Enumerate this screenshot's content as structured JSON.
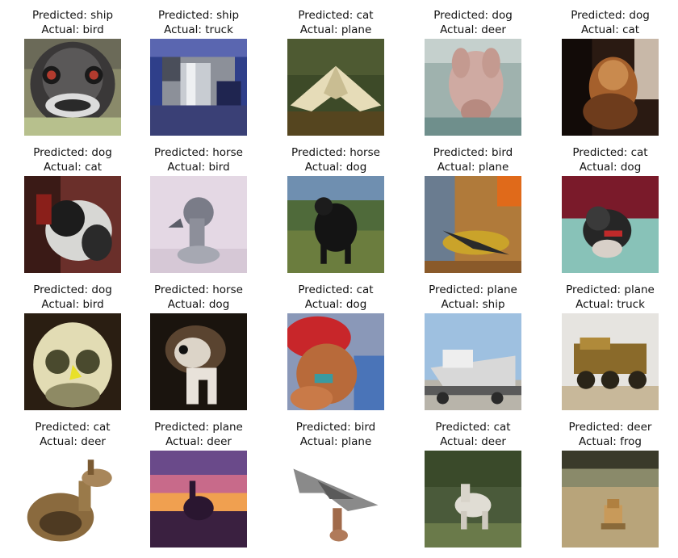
{
  "figure": {
    "tiles": [
      {
        "predicted": "Predicted: ship",
        "actual": "Actual: bird",
        "subject": "ostrich head close-up"
      },
      {
        "predicted": "Predicted: ship",
        "actual": "Actual: truck",
        "subject": "chrome truck grille"
      },
      {
        "predicted": "Predicted: cat",
        "actual": "Actual: plane",
        "subject": "stealth plane over ground"
      },
      {
        "predicted": "Predicted: dog",
        "actual": "Actual: deer",
        "subject": "pale deer head"
      },
      {
        "predicted": "Predicted: dog",
        "actual": "Actual: cat",
        "subject": "cat in dim light"
      },
      {
        "predicted": "Predicted: dog",
        "actual": "Actual: cat",
        "subject": "black and white cat"
      },
      {
        "predicted": "Predicted: horse",
        "actual": "Actual: bird",
        "subject": "grey bird on pale background"
      },
      {
        "predicted": "Predicted: horse",
        "actual": "Actual: dog",
        "subject": "black dog on grass"
      },
      {
        "predicted": "Predicted: bird",
        "actual": "Actual: plane",
        "subject": "plane against orange sky"
      },
      {
        "predicted": "Predicted: cat",
        "actual": "Actual: dog",
        "subject": "small dog on teal blanket"
      },
      {
        "predicted": "Predicted: dog",
        "actual": "Actual: bird",
        "subject": "owl face"
      },
      {
        "predicted": "Predicted: horse",
        "actual": "Actual: dog",
        "subject": "dog close-up"
      },
      {
        "predicted": "Predicted: cat",
        "actual": "Actual: dog",
        "subject": "dog with red cap"
      },
      {
        "predicted": "Predicted: plane",
        "actual": "Actual: ship",
        "subject": "ship on trailer"
      },
      {
        "predicted": "Predicted: plane",
        "actual": "Actual: truck",
        "subject": "yellow dump truck"
      },
      {
        "predicted": "Predicted: cat",
        "actual": "Actual: deer",
        "subject": "deer lying down"
      },
      {
        "predicted": "Predicted: plane",
        "actual": "Actual: deer",
        "subject": "deer silhouette at sunset"
      },
      {
        "predicted": "Predicted: bird",
        "actual": "Actual: plane",
        "subject": "stealth plane model"
      },
      {
        "predicted": "Predicted: cat",
        "actual": "Actual: deer",
        "subject": "white deer in forest"
      },
      {
        "predicted": "Predicted: deer",
        "actual": "Actual: frog",
        "subject": "frog on sand"
      }
    ]
  }
}
